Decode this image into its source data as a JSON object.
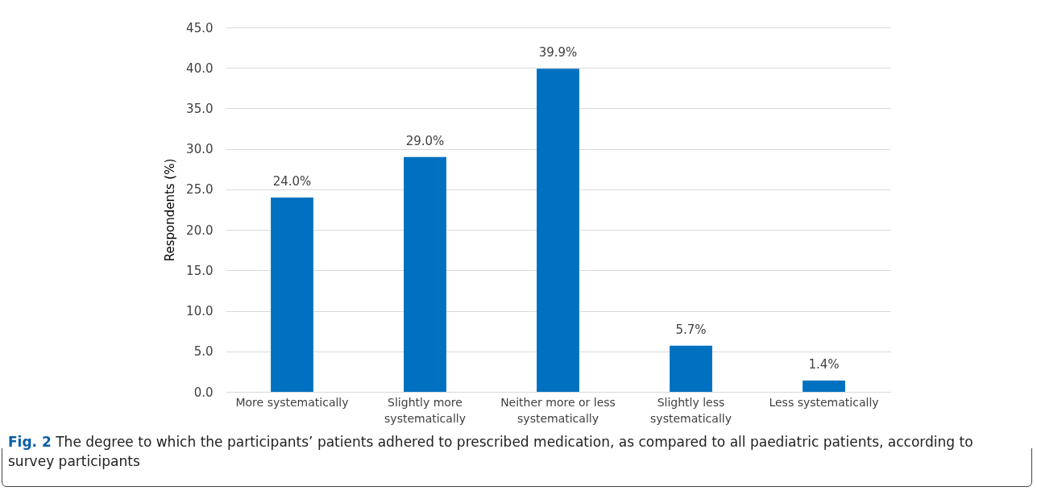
{
  "chart_data": {
    "type": "bar",
    "ylabel": "Respondents (%)",
    "categories": [
      "More systematically",
      "Slightly more systematically",
      "Neither more or less systematically",
      "Slightly less systematically",
      "Less systematically"
    ],
    "values": [
      24.0,
      29.0,
      39.9,
      5.7,
      1.4
    ],
    "value_labels": [
      "24.0%",
      "29.0%",
      "39.9%",
      "5.7%",
      "1.4%"
    ],
    "color": "#0070c0",
    "ylim": [
      0,
      45
    ],
    "yticks": [
      {
        "value": 0,
        "label": "0.0"
      },
      {
        "value": 5,
        "label": "5.0"
      },
      {
        "value": 10,
        "label": "10.0"
      },
      {
        "value": 15,
        "label": "15.0"
      },
      {
        "value": 20,
        "label": "20.0"
      },
      {
        "value": 25,
        "label": "25.0"
      },
      {
        "value": 30,
        "label": "30.0"
      },
      {
        "value": 35,
        "label": "35.0"
      },
      {
        "value": 40,
        "label": "40.0"
      },
      {
        "value": 45,
        "label": "45.0"
      }
    ],
    "grid": "y",
    "annotations": [
      "Fig. 2 The degree to which the participants’ patients adhered to prescribed medication, as compared to all paediatric patients, according to survey participants"
    ]
  }
}
